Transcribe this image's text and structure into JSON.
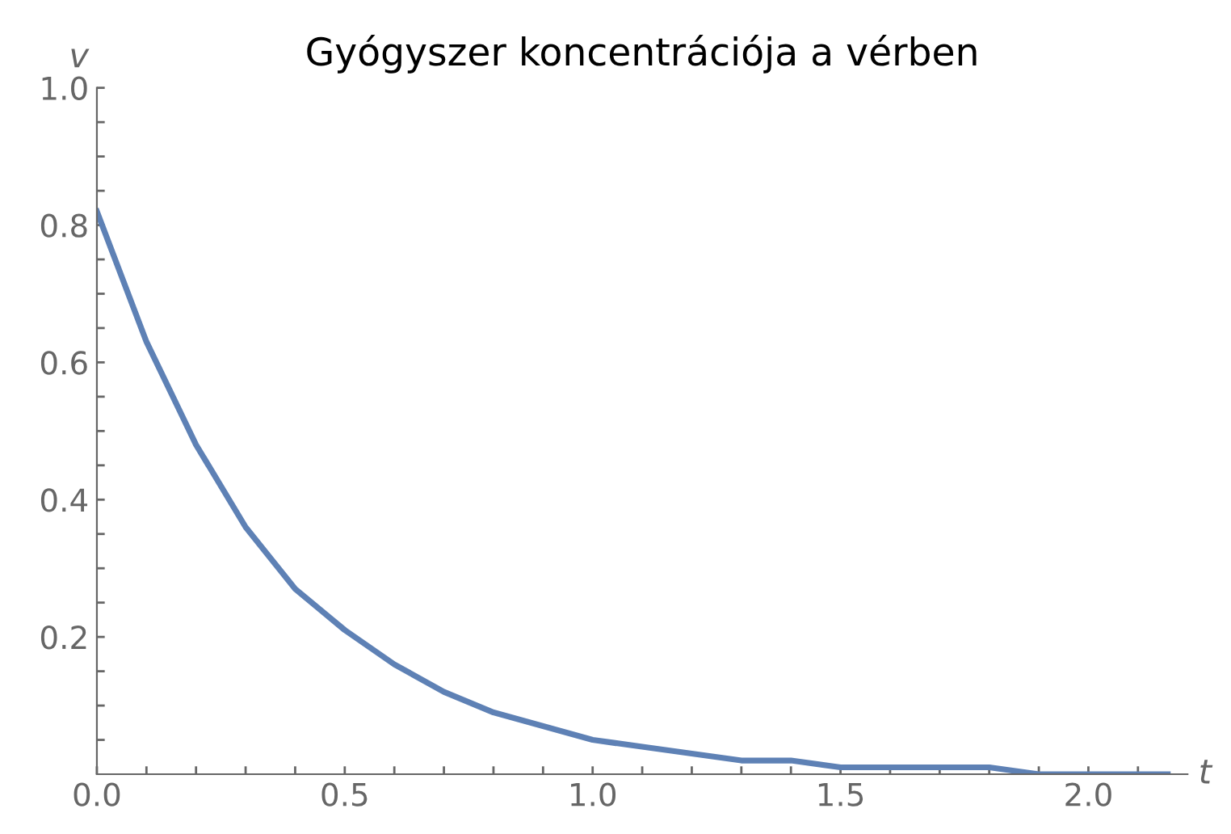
{
  "chart_data": {
    "type": "line",
    "title": "Gyógyszer koncentrációja a vérben",
    "xlabel": "t",
    "ylabel": "v",
    "x": [
      0,
      0.1,
      0.2,
      0.3,
      0.4,
      0.5,
      0.6,
      0.7,
      0.8,
      0.9,
      1.0,
      1.1,
      1.2,
      1.3,
      1.4,
      1.5,
      1.6,
      1.7,
      1.8,
      1.9,
      2.0,
      2.16
    ],
    "series": [
      {
        "color": "#5e81b5",
        "values": [
          0.82,
          0.63,
          0.48,
          0.36,
          0.27,
          0.21,
          0.16,
          0.12,
          0.09,
          0.07,
          0.05,
          0.04,
          0.03,
          0.02,
          0.02,
          0.01,
          0.01,
          0.01,
          0.01,
          0.0,
          0.0,
          0.0
        ]
      }
    ],
    "xlim": [
      0,
      2.2
    ],
    "ylim": [
      0,
      1.0
    ],
    "xticks": [
      {
        "value": 0,
        "label": "0.0"
      },
      {
        "value": 0.1,
        "label": null
      },
      {
        "value": 0.2,
        "label": null
      },
      {
        "value": 0.3,
        "label": null
      },
      {
        "value": 0.4,
        "label": null
      },
      0.5,
      {
        "value": 0.6,
        "label": null
      },
      {
        "value": 0.7,
        "label": null
      },
      {
        "value": 0.8,
        "label": null
      },
      {
        "value": 0.9,
        "label": null
      },
      {
        "value": 1.0,
        "label": "1.0"
      },
      {
        "value": 1.1,
        "label": null
      },
      {
        "value": 1.2,
        "label": null
      },
      {
        "value": 1.3,
        "label": null
      },
      {
        "value": 1.4,
        "label": null
      },
      1.5,
      {
        "value": 1.6,
        "label": null
      },
      {
        "value": 1.7,
        "label": null
      },
      {
        "value": 1.8,
        "label": null
      },
      {
        "value": 1.9,
        "label": null
      },
      {
        "value": 2.0,
        "label": "2.0"
      },
      {
        "value": 2.1,
        "label": null
      }
    ],
    "yticks": [
      {
        "value": 0.05,
        "label": null
      },
      {
        "value": 0.1,
        "label": null
      },
      {
        "value": 0.15,
        "label": null
      },
      0.2,
      {
        "value": 0.25,
        "label": null
      },
      {
        "value": 0.3,
        "label": null
      },
      {
        "value": 0.35,
        "label": null
      },
      0.4,
      {
        "value": 0.45,
        "label": null
      },
      {
        "value": 0.5,
        "label": null
      },
      {
        "value": 0.55,
        "label": null
      },
      0.6,
      {
        "value": 0.65,
        "label": null
      },
      {
        "value": 0.7,
        "label": null
      },
      {
        "value": 0.75,
        "label": null
      },
      0.8,
      {
        "value": 0.85,
        "label": null
      },
      {
        "value": 0.9,
        "label": null
      },
      {
        "value": 0.95,
        "label": null
      },
      {
        "value": 1.0,
        "label": "1.0"
      }
    ],
    "grid": false,
    "legend": false,
    "marker": "none",
    "line_style": "solid"
  }
}
